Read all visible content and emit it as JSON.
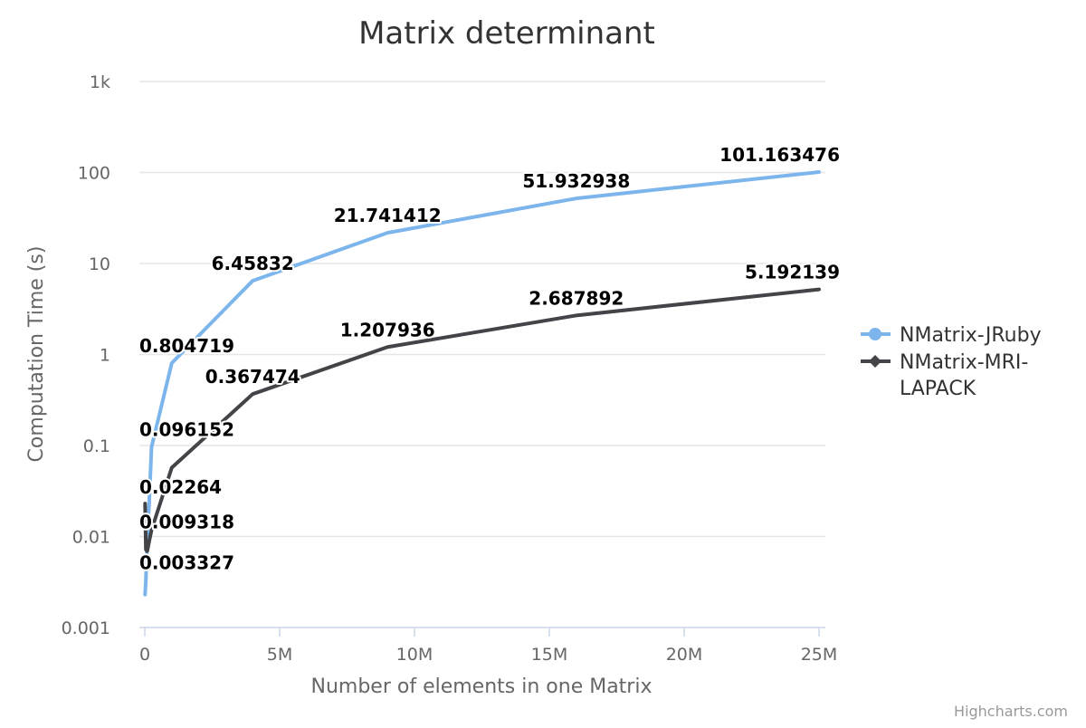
{
  "chart_data": {
    "type": "line",
    "title": "Matrix determinant",
    "xlabel": "Number of elements in one Matrix",
    "ylabel": "Computation Time (s)",
    "xlim": [
      0,
      25000000
    ],
    "ylim": [
      0.001,
      1000
    ],
    "y_scale": "log",
    "x_ticks": [
      {
        "value": 0,
        "label": "0"
      },
      {
        "value": 5000000,
        "label": "5M"
      },
      {
        "value": 10000000,
        "label": "10M"
      },
      {
        "value": 15000000,
        "label": "15M"
      },
      {
        "value": 20000000,
        "label": "20M"
      },
      {
        "value": 25000000,
        "label": "25M"
      }
    ],
    "y_ticks": [
      {
        "value": 0.001,
        "label": "0.001"
      },
      {
        "value": 0.01,
        "label": "0.01"
      },
      {
        "value": 0.1,
        "label": "0.1"
      },
      {
        "value": 1,
        "label": "1"
      },
      {
        "value": 10,
        "label": "10"
      },
      {
        "value": 100,
        "label": "100"
      },
      {
        "value": 1000,
        "label": "1k"
      }
    ],
    "grid": true,
    "legend_position": "right",
    "series": [
      {
        "name": "NMatrix-JRuby",
        "color": "#7cb5ec",
        "marker": "circle",
        "points": [
          {
            "x": 10000,
            "y": 0.002301
          },
          {
            "x": 40000,
            "y": 0.003327
          },
          {
            "x": 90000,
            "y": 0.009318
          },
          {
            "x": 160000,
            "y": 0.02264
          },
          {
            "x": 250000,
            "y": 0.096152
          },
          {
            "x": 1000000,
            "y": 0.804719
          },
          {
            "x": 4000000,
            "y": 6.45832
          },
          {
            "x": 9000000,
            "y": 21.741412
          },
          {
            "x": 16000000,
            "y": 51.932938
          },
          {
            "x": 25000000,
            "y": 101.163476
          }
        ]
      },
      {
        "name": "NMatrix-MRI-LAPACK",
        "color": "#434348",
        "marker": "diamond",
        "points": [
          {
            "x": 10000,
            "y": 0.023
          },
          {
            "x": 40000,
            "y": 0.0072
          },
          {
            "x": 90000,
            "y": 0.0069
          },
          {
            "x": 160000,
            "y": 0.0088
          },
          {
            "x": 250000,
            "y": 0.0118
          },
          {
            "x": 1000000,
            "y": 0.057
          },
          {
            "x": 4000000,
            "y": 0.367474
          },
          {
            "x": 9000000,
            "y": 1.207936
          },
          {
            "x": 16000000,
            "y": 2.687892
          },
          {
            "x": 25000000,
            "y": 5.192139
          }
        ]
      }
    ],
    "data_labels": [
      {
        "series": 0,
        "point": 1,
        "text": "0.003327"
      },
      {
        "series": 0,
        "point": 2,
        "text": "0.009318"
      },
      {
        "series": 0,
        "point": 3,
        "text": "0.02264"
      },
      {
        "series": 0,
        "point": 4,
        "text": "0.096152"
      },
      {
        "series": 0,
        "point": 5,
        "text": "0.804719"
      },
      {
        "series": 0,
        "point": 6,
        "text": "6.45832"
      },
      {
        "series": 0,
        "point": 7,
        "text": "21.741412"
      },
      {
        "series": 0,
        "point": 8,
        "text": "51.932938"
      },
      {
        "series": 0,
        "point": 9,
        "text": "101.163476"
      },
      {
        "series": 1,
        "point": 6,
        "text": "0.367474"
      },
      {
        "series": 1,
        "point": 7,
        "text": "1.207936"
      },
      {
        "series": 1,
        "point": 8,
        "text": "2.687892"
      },
      {
        "series": 1,
        "point": 9,
        "text": "5.192139"
      }
    ],
    "legend": {
      "items": [
        {
          "lines": [
            "NMatrix-JRuby"
          ]
        },
        {
          "lines": [
            "NMatrix-MRI-",
            "LAPACK"
          ]
        }
      ]
    }
  },
  "credits": "Highcharts.com"
}
